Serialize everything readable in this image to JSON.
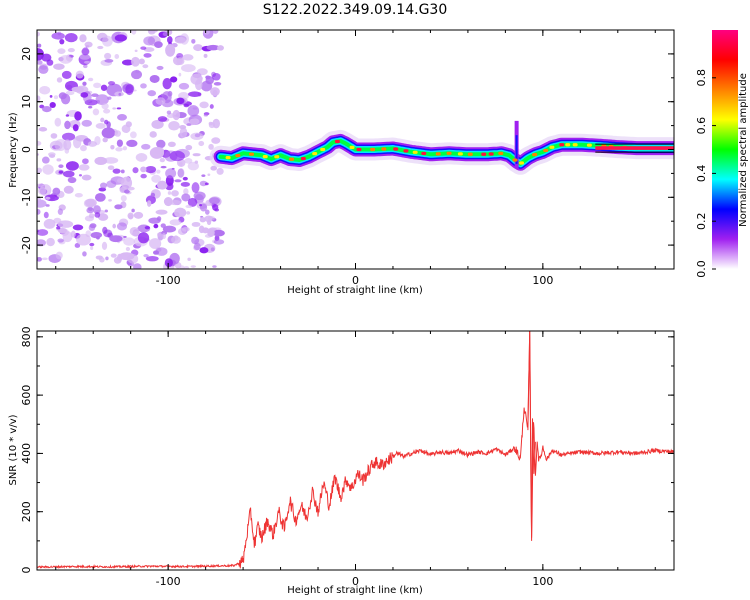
{
  "title": "S122.2022.349.09.14.G30",
  "chart_data": [
    {
      "type": "heatmap",
      "xlabel": "Height of straight line (km)",
      "ylabel": "Frequency (Hz)",
      "xlim": [
        -170,
        170
      ],
      "ylim": [
        -25,
        25
      ],
      "xticks": [
        -100,
        0,
        100
      ],
      "yticks": [
        -20,
        -10,
        0,
        10,
        20
      ],
      "colorbar": {
        "label": "Normalized spectral amplitude",
        "range": [
          0,
          1
        ],
        "ticks": [
          0.0,
          0.2,
          0.4,
          0.6,
          0.8
        ],
        "colors": [
          "#ffffff",
          "#a020f0",
          "#0000ff",
          "#00ffff",
          "#00ff00",
          "#ffff00",
          "#ff8000",
          "#ff0000",
          "#ff0080"
        ]
      },
      "noise_region": {
        "x": [
          -170,
          -72
        ],
        "y": [
          -25,
          25
        ]
      },
      "ridge": {
        "x": [
          -72,
          -66,
          -60,
          -55,
          -50,
          -45,
          -40,
          -35,
          -30,
          -25,
          -20,
          -15,
          -12,
          -8,
          -5,
          0,
          10,
          20,
          30,
          40,
          50,
          60,
          70,
          78,
          82,
          86,
          88,
          92,
          96,
          100,
          105,
          110,
          120,
          130,
          140,
          150,
          160,
          170
        ],
        "y": [
          -1.5,
          -1.8,
          -0.8,
          -1.0,
          -1.2,
          -2.0,
          -1.2,
          -2.0,
          -2.2,
          -1.5,
          -0.5,
          0.5,
          1.5,
          1.8,
          1.2,
          0.0,
          0.0,
          0.2,
          -0.5,
          -1.0,
          -0.8,
          -1.0,
          -1.0,
          -0.8,
          -1.2,
          -2.5,
          -3.0,
          -1.8,
          -1.0,
          -0.5,
          0.5,
          1.0,
          1.0,
          0.8,
          0.5,
          0.3,
          0.3,
          0.3
        ]
      }
    },
    {
      "type": "line",
      "xlabel": "Height of straight line (km)",
      "ylabel": "SNR (10 * v/v)",
      "xlim": [
        -170,
        170
      ],
      "ylim": [
        0,
        820
      ],
      "xticks": [
        -100,
        0,
        100
      ],
      "yticks": [
        0,
        200,
        400,
        600,
        800
      ],
      "series": [
        {
          "color": "#ee3333",
          "x": [
            -170,
            -150,
            -130,
            -110,
            -90,
            -75,
            -65,
            -60,
            -58,
            -56,
            -54,
            -52,
            -50,
            -47,
            -44,
            -41,
            -38,
            -35,
            -32,
            -29,
            -26,
            -23,
            -20,
            -17,
            -14,
            -11,
            -8,
            -5,
            -2,
            1,
            4,
            7,
            10,
            14,
            18,
            22,
            26,
            30,
            35,
            40,
            45,
            50,
            55,
            60,
            65,
            70,
            75,
            80,
            85,
            88,
            90,
            92,
            93,
            94,
            95,
            96,
            97,
            98,
            100,
            102,
            105,
            110,
            115,
            120,
            130,
            140,
            150,
            160,
            170
          ],
          "y": [
            10,
            12,
            11,
            13,
            12,
            14,
            15,
            30,
            120,
            200,
            90,
            150,
            110,
            170,
            120,
            200,
            140,
            240,
            170,
            220,
            180,
            270,
            200,
            300,
            220,
            320,
            250,
            310,
            280,
            330,
            310,
            340,
            370,
            360,
            380,
            400,
            390,
            400,
            410,
            395,
            405,
            400,
            410,
            395,
            405,
            400,
            415,
            395,
            420,
            380,
            560,
            480,
            820,
            100,
            520,
            330,
            440,
            370,
            420,
            380,
            410,
            395,
            400,
            405,
            400,
            405,
            400,
            410,
            405
          ]
        }
      ]
    }
  ]
}
